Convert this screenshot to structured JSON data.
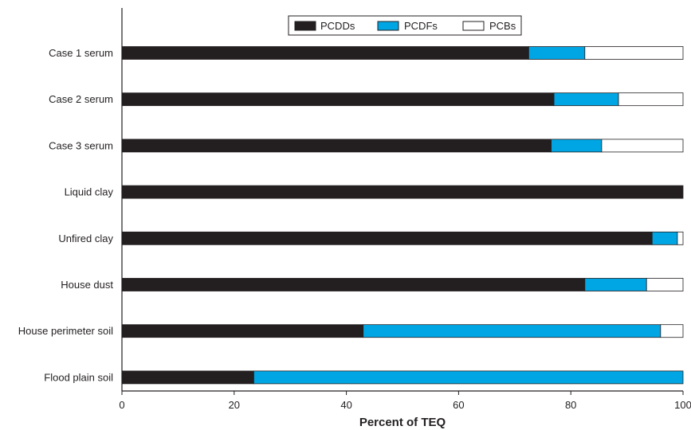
{
  "chart_data": {
    "type": "bar",
    "orientation": "horizontal",
    "stacked": true,
    "categories": [
      "Case 1 serum",
      "Case 2 serum",
      "Case 3 serum",
      "Liquid clay",
      "Unfired clay",
      "House dust",
      "House perimeter soil",
      "Flood plain soil"
    ],
    "series": [
      {
        "name": "PCDDs",
        "color": "#231f20",
        "values": [
          72.5,
          77,
          76.5,
          100,
          94.5,
          82.5,
          43,
          23.5
        ]
      },
      {
        "name": "PCDFs",
        "color": "#00a6e4",
        "values": [
          10,
          11.5,
          9,
          0,
          4.5,
          11,
          53,
          76.5
        ]
      },
      {
        "name": "PCBs",
        "color": "#ffffff",
        "values": [
          17.5,
          11.5,
          14.5,
          0,
          1,
          6.5,
          4,
          0
        ]
      }
    ],
    "xlabel": "Percent of TEQ",
    "xlim": [
      0,
      100
    ],
    "xticks": [
      "0",
      "20",
      "40",
      "60",
      "80",
      "100"
    ],
    "legend_position": "top-center",
    "grid": false
  }
}
